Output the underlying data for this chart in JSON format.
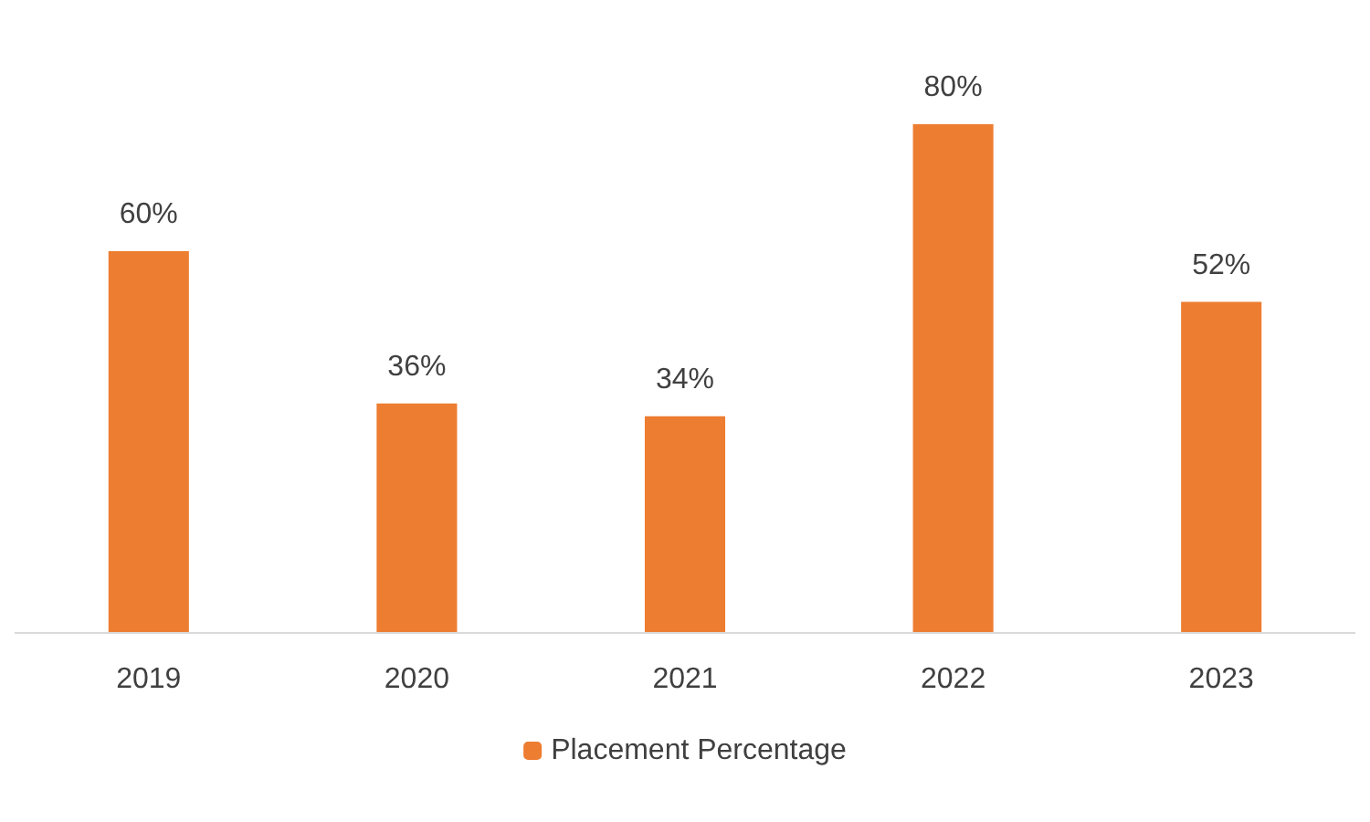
{
  "chart_data": {
    "type": "bar",
    "categories": [
      "2019",
      "2020",
      "2021",
      "2022",
      "2023"
    ],
    "series": [
      {
        "name": "Placement Percentage",
        "color": "#ed7d31",
        "values": [
          60,
          36,
          34,
          80,
          52
        ],
        "value_labels": [
          "60%",
          "36%",
          "34%",
          "80%",
          "52%"
        ]
      }
    ],
    "legend": "bottom",
    "grid": false
  }
}
